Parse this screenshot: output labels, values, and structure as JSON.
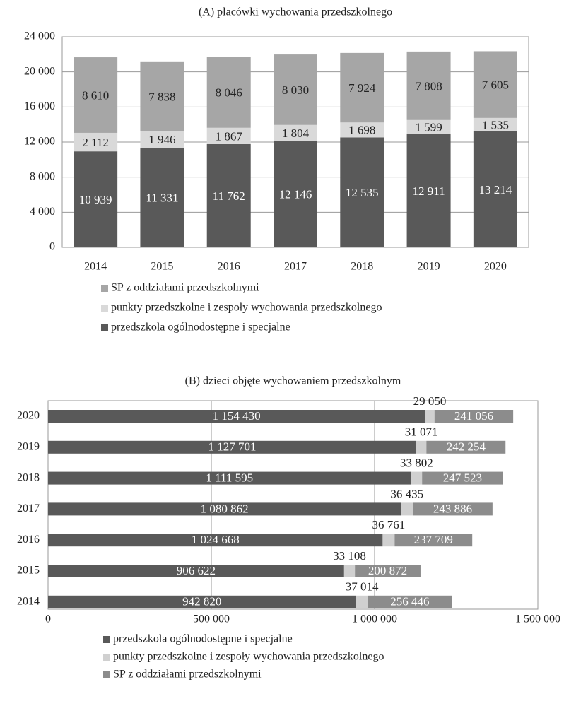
{
  "chart_data": [
    {
      "type": "bar",
      "orientation": "vertical",
      "title": "(A) placówki wychowania przedszkolnego",
      "categories": [
        "2014",
        "2015",
        "2016",
        "2017",
        "2018",
        "2019",
        "2020"
      ],
      "series": [
        {
          "name": "SP z oddziałami przedszkolnymi",
          "color": "#a6a6a6",
          "values": [
            8610,
            7838,
            8046,
            8030,
            7924,
            7808,
            7605
          ],
          "value_labels": [
            "8 610",
            "7 838",
            "8 046",
            "8 030",
            "7 924",
            "7 808",
            "7 605"
          ]
        },
        {
          "name": "punkty przedszkolne i zespoły wychowania przedszkolnego",
          "color": "#d9d9d9",
          "values": [
            2112,
            1946,
            1867,
            1804,
            1698,
            1599,
            1535
          ],
          "value_labels": [
            "2 112",
            "1 946",
            "1 867",
            "1 804",
            "1 698",
            "1 599",
            "1 535"
          ]
        },
        {
          "name": "przedszkola ogólnodostępne i specjalne",
          "color": "#595959",
          "values": [
            10939,
            11331,
            11762,
            12146,
            12535,
            12911,
            13214
          ],
          "value_labels": [
            "10 939",
            "11 331",
            "11 762",
            "12 146",
            "12 535",
            "12 911",
            "13 214"
          ]
        }
      ],
      "ylim": [
        0,
        24000
      ],
      "yticks": [
        0,
        {
          "value": 4000,
          "label": "4 000"
        },
        {
          "value": 8000,
          "label": "8 000"
        },
        {
          "value": 12000,
          "label": "12 000"
        },
        {
          "value": 16000,
          "label": "16 000"
        },
        {
          "value": 20000,
          "label": "20 000"
        },
        {
          "value": 24000,
          "label": "24 000"
        }
      ],
      "grid": true
    },
    {
      "type": "bar",
      "orientation": "horizontal",
      "title": "(B) dzieci objęte wychowaniem przedszkolnym",
      "categories": [
        "2020",
        "2019",
        "2018",
        "2017",
        "2016",
        "2015",
        "2014"
      ],
      "series": [
        {
          "name": "przedszkola ogólnodostępne i specjalne",
          "color": "#595959",
          "values": [
            1154430,
            1127701,
            1111595,
            1080862,
            1024668,
            906622,
            942820
          ],
          "value_labels": [
            "1 154 430",
            "1 127 701",
            "1 111 595",
            "1 080 862",
            "1 024 668",
            "906 622",
            "942 820"
          ]
        },
        {
          "name": "punkty przedszkolne i zespoły wychowania przedszkolnego",
          "color": "#d0d0d0",
          "values": [
            29050,
            31071,
            33802,
            36435,
            36761,
            33108,
            37014
          ],
          "value_labels": [
            "29 050",
            "31 071",
            "33 802",
            "36 435",
            "36 761",
            "33 108",
            "37 014"
          ]
        },
        {
          "name": "SP z oddziałami przedszkolnymi",
          "color": "#8c8c8c",
          "values": [
            241056,
            242254,
            247523,
            243886,
            237709,
            200872,
            256446
          ],
          "value_labels": [
            "241 056",
            "242 254",
            "247 523",
            "243 886",
            "237 709",
            "200 872",
            "256 446"
          ]
        }
      ],
      "xlim": [
        0,
        1500000
      ],
      "xticks": [
        0,
        {
          "value": 500000,
          "label": "500 000"
        },
        {
          "value": 1000000,
          "label": "1 000 000"
        },
        {
          "value": 1500000,
          "label": "1 500 000"
        }
      ],
      "grid": true
    }
  ]
}
